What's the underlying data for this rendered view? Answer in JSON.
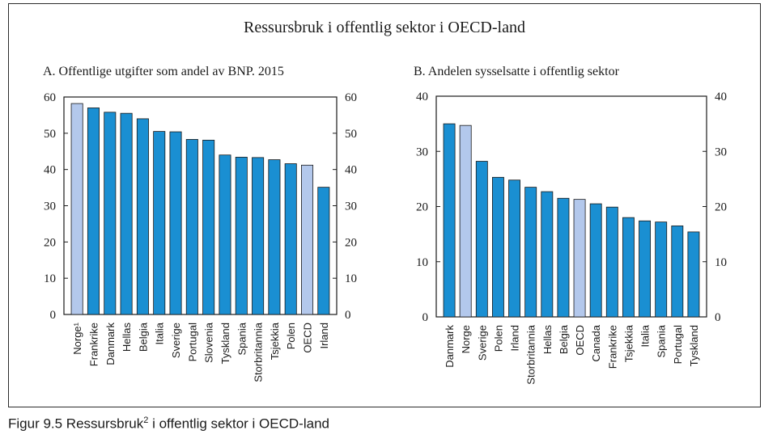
{
  "figure": {
    "main_title": "Ressursbruk i offentlig sektor i OECD-land",
    "caption_prefix": "Figur 9.5  Ressursbruk",
    "caption_sup": "2",
    "caption_suffix": " i offentlig sektor i OECD-land"
  },
  "colors": {
    "bar": "#1a8fd2",
    "highlight": "#b3c8ec",
    "axis": "#1a1a1a"
  },
  "chart_data": [
    {
      "type": "bar",
      "title": "A.  Offentlige utgifter som andel av BNP. 2015",
      "categories": [
        "Norge¹",
        "Frankrike",
        "Danmark",
        "Hellas",
        "Belgia",
        "Italia",
        "Sverige",
        "Portugal",
        "Slovenia",
        "Tyskland",
        "Spania",
        "Storbritannia",
        "Tsjekkia",
        "Polen",
        "OECD",
        "Irland"
      ],
      "values": [
        58.2,
        57.0,
        55.8,
        55.5,
        54.0,
        50.5,
        50.4,
        48.3,
        48.1,
        44.0,
        43.4,
        43.3,
        42.7,
        41.6,
        41.2,
        35.1
      ],
      "highlighted": [
        "Norge¹",
        "OECD"
      ],
      "ylim": [
        0,
        60
      ],
      "yticks": [
        "0",
        "10",
        "20",
        "30",
        "40",
        "50",
        "60"
      ],
      "xlabel": "",
      "ylabel": ""
    },
    {
      "type": "bar",
      "title": "B.  Andelen sysselsatte i offentlig sektor",
      "categories": [
        "Danmark",
        "Norge",
        "Sverige",
        "Polen",
        "Irland",
        "Storbritannia",
        "Hellas",
        "Belgia",
        "OECD",
        "Canada",
        "Frankrike",
        "Tsjekkia",
        "Italia",
        "Spania",
        "Portugal",
        "Tyskland"
      ],
      "values": [
        35.0,
        34.7,
        28.2,
        25.3,
        24.8,
        23.5,
        22.7,
        21.5,
        21.3,
        20.5,
        19.9,
        18.0,
        17.4,
        17.2,
        16.5,
        15.4
      ],
      "highlighted": [
        "Norge",
        "OECD"
      ],
      "ylim": [
        0,
        40
      ],
      "yticks": [
        "0",
        "10",
        "20",
        "30",
        "40"
      ],
      "xlabel": "",
      "ylabel": ""
    }
  ]
}
